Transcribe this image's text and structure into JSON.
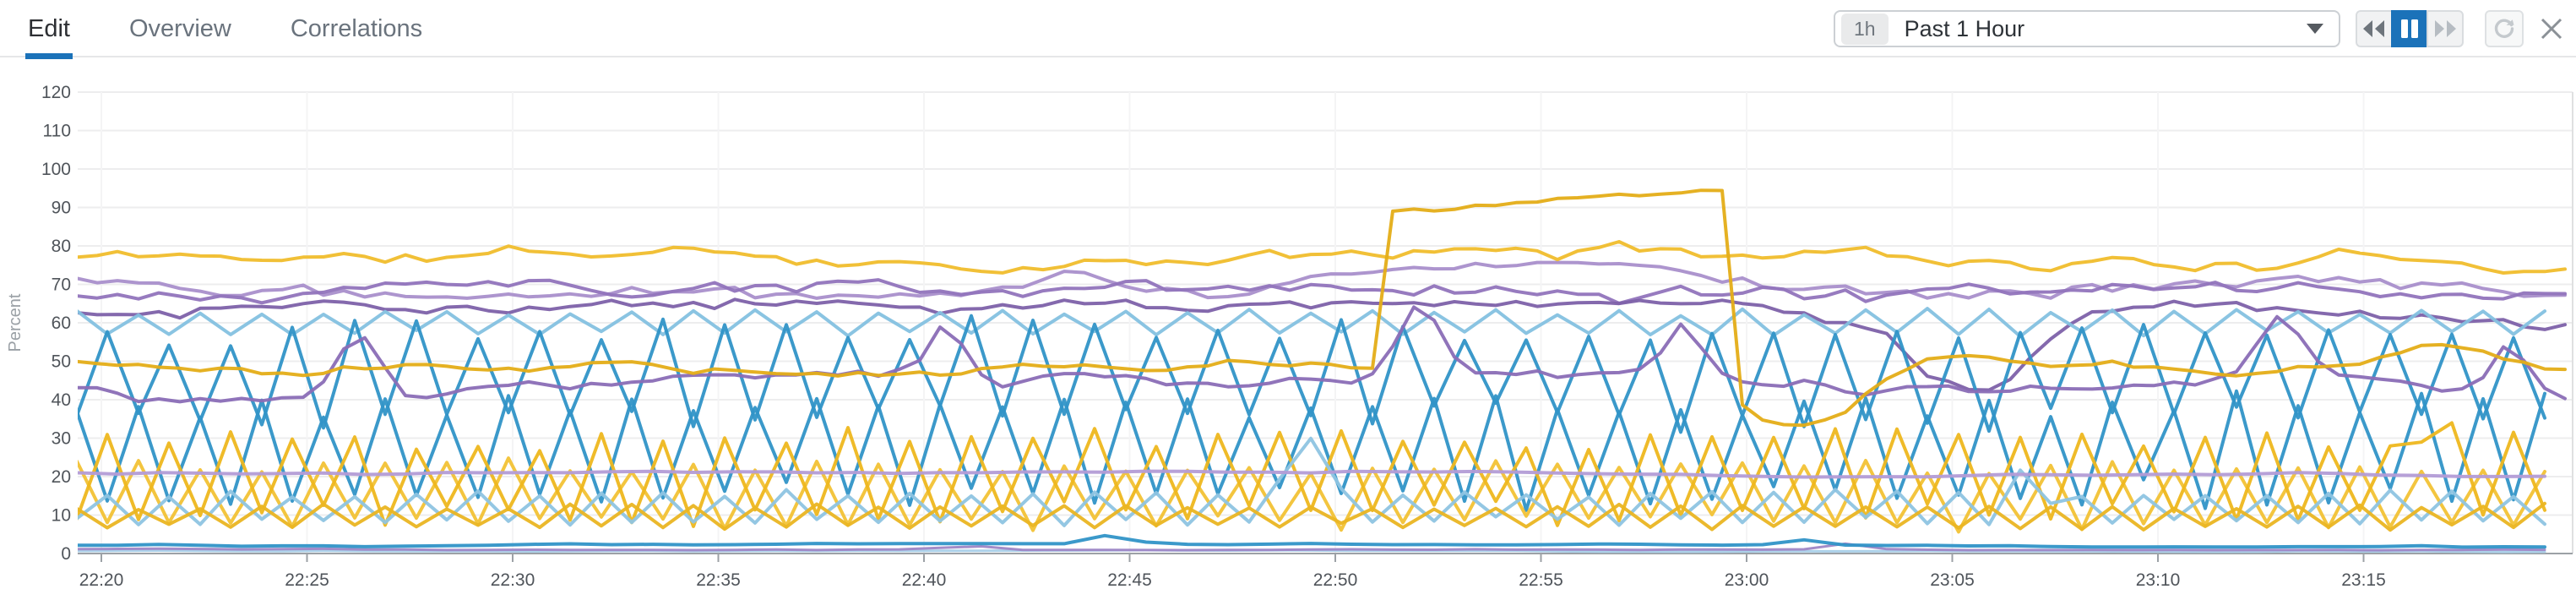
{
  "tabs": [
    {
      "label": "Edit",
      "active": true
    },
    {
      "label": "Overview",
      "active": false
    },
    {
      "label": "Correlations",
      "active": false
    }
  ],
  "time_range": {
    "badge": "1h",
    "label": "Past 1 Hour"
  },
  "icons": {
    "caret": "chevron-down-icon",
    "rewind": "rewind-icon",
    "pause": "pause-icon",
    "forward": "fast-forward-icon",
    "refresh": "refresh-icon",
    "close": "close-icon"
  },
  "colors": {
    "accent_blue": "#1b72b9",
    "grid": "#ededee",
    "axis_line": "#9ca1a6",
    "axis_text": "#4f545a"
  },
  "chart_data": {
    "type": "line",
    "title": "",
    "xlabel": "",
    "ylabel": "Percent",
    "unit": "percent",
    "ylim": [
      0,
      120
    ],
    "y_ticks": [
      0,
      10,
      20,
      30,
      40,
      50,
      60,
      70,
      80,
      90,
      100,
      110,
      120
    ],
    "x_ticks": [
      "22:20",
      "22:25",
      "22:30",
      "22:35",
      "22:40",
      "22:45",
      "22:50",
      "22:55",
      "23:00",
      "23:05",
      "23:10",
      "23:15"
    ],
    "x_tick_interval_minutes": 5,
    "t_start": -0.6,
    "t_end": 60.05,
    "grid": true,
    "legend": "none",
    "annotation": "yellow series steps up from ~50% to ~88-95% between 22:51 and 23:00, then drops back to ~40-50%",
    "series": [
      {
        "name": "purple-walk-high",
        "color": "#a98fcb",
        "width": 4,
        "seed": 22,
        "pattern": "walk",
        "base": 71.5,
        "amp": 4.5,
        "min": 63,
        "max": 80.5
      },
      {
        "name": "purple-walk-mid",
        "color": "#9174bc",
        "width": 4,
        "seed": 33,
        "pattern": "walk",
        "base": 66.5,
        "amp": 4,
        "min": 58,
        "max": 76
      },
      {
        "name": "purple-walk-low",
        "color": "#7d61a9",
        "width": 4,
        "seed": 44,
        "pattern": "walk",
        "base": 62,
        "amp": 3.5,
        "min": 55,
        "max": 70,
        "spikes": [
          {
            "t": 45.5,
            "v": 44,
            "w": 1.8
          }
        ]
      },
      {
        "name": "lightblue-zigzag-60",
        "color": "#84c1e0",
        "width": 4,
        "seed": 55,
        "pattern": "zigzag",
        "dt": 0.75,
        "base": 60,
        "amp": 3.5,
        "min": 53,
        "max": 67
      },
      {
        "name": "blue-zigzag-upper",
        "color": "#3093c7",
        "width": 4,
        "seed": 66,
        "pattern": "zigzag",
        "dt": 0.75,
        "base": 47,
        "amp": 14,
        "min": 30,
        "max": 63
      },
      {
        "name": "blue-zigzag-lower",
        "color": "#3093c7",
        "width": 4,
        "seed": 77,
        "pattern": "zigzag",
        "dt": 0.75,
        "base": 27,
        "amp": 15,
        "min": 8,
        "max": 45
      },
      {
        "name": "purple-walk-45",
        "color": "#8a6db6",
        "width": 4,
        "seed": 99,
        "pattern": "walk",
        "base": 43.5,
        "amp": 3.5,
        "min": 36,
        "max": 52,
        "spikes": [
          {
            "t": 6.3,
            "v": 60,
            "w": 0.7
          },
          {
            "t": 20.5,
            "v": 57,
            "w": 0.6
          },
          {
            "t": 32,
            "v": 62,
            "w": 0.7
          },
          {
            "t": 38.5,
            "v": 58,
            "w": 0.6
          },
          {
            "t": 53,
            "v": 59,
            "w": 0.7
          },
          {
            "t": 58.5,
            "v": 56,
            "w": 0.6
          }
        ]
      },
      {
        "name": "yellow-zigzag-b",
        "color": "#f2c235",
        "width": 4,
        "seed": 133,
        "pattern": "zigzag",
        "dt": 0.75,
        "base": 15.5,
        "amp": 9,
        "min": 5,
        "max": 30
      },
      {
        "name": "yellow-zigzag-a",
        "color": "#eeb71e",
        "width": 4,
        "seed": 122,
        "pattern": "zigzag",
        "dt": 0.75,
        "base": 20,
        "amp": 12,
        "min": 5,
        "max": 38,
        "spikes": [
          {
            "t": 56.5,
            "v": 41,
            "w": 0.5
          }
        ]
      },
      {
        "name": "lightblue-zigzag-low",
        "color": "#8ec4e2",
        "width": 4,
        "seed": 144,
        "pattern": "zigzag",
        "dt": 0.75,
        "base": 12,
        "amp": 4.5,
        "min": 6,
        "max": 19,
        "spikes": [
          {
            "t": 29.3,
            "v": 35,
            "w": 0.5
          },
          {
            "t": 47,
            "v": 22,
            "w": 0.5
          }
        ]
      },
      {
        "name": "yellow-zigzag-low",
        "color": "#eab522",
        "width": 4,
        "seed": 155,
        "pattern": "zigzag",
        "dt": 0.75,
        "base": 9.5,
        "amp": 3.2,
        "min": 5.5,
        "max": 14
      },
      {
        "name": "purple-flat-20",
        "color": "#b39cd6",
        "width": 4,
        "seed": 111,
        "pattern": "walk",
        "dt": 1,
        "base": 20.6,
        "amp": 0.7,
        "min": 19,
        "max": 22.5
      },
      {
        "name": "lightblue-flat-0.6",
        "color": "#a8cfe8",
        "width": 3,
        "seed": 188,
        "pattern": "walk",
        "dt": 1,
        "base": 0.65,
        "amp": 0.2,
        "min": 0.3,
        "max": 1.1
      },
      {
        "name": "purple-flat-1",
        "color": "#9e86c6",
        "width": 3,
        "seed": 177,
        "pattern": "walk",
        "dt": 1,
        "base": 1.15,
        "amp": 0.25,
        "min": 0.7,
        "max": 1.8,
        "spikes": [
          {
            "t": 21,
            "v": 2.8,
            "w": 0.5
          },
          {
            "t": 42.5,
            "v": 2.6,
            "w": 0.5
          }
        ]
      },
      {
        "name": "blue-flat-2",
        "color": "#3093c7",
        "width": 4,
        "seed": 166,
        "pattern": "walk",
        "dt": 1,
        "base": 2.1,
        "amp": 0.45,
        "min": 1.3,
        "max": 3.2,
        "spikes": [
          {
            "t": 24.7,
            "v": 5.2,
            "w": 0.5
          },
          {
            "t": 41.5,
            "v": 3.6,
            "w": 0.4
          },
          {
            "t": 56,
            "v": 3.4,
            "w": 0.4
          }
        ]
      },
      {
        "name": "yellow-walk-top",
        "color": "#f0bd2c",
        "width": 4,
        "seed": 11,
        "pattern": "walk",
        "base": 77,
        "amp": 3.5,
        "min": 71,
        "max": 81.5
      },
      {
        "name": "yellow-step",
        "color": "#e4ad17",
        "width": 4,
        "seed": 88,
        "pattern": "walk",
        "base": 49,
        "amp": 2.5,
        "min": 42,
        "max": 56,
        "step": {
          "t_start": 31,
          "t_end": 39.6,
          "v_start": 88.5,
          "v_end": 95
        },
        "spikes": [
          {
            "t": 40.6,
            "v": 40,
            "w": 1.2
          },
          {
            "t": 42,
            "v": 37,
            "w": 1.6
          },
          {
            "t": 57,
            "v": 55,
            "w": 1.5
          }
        ]
      }
    ]
  }
}
